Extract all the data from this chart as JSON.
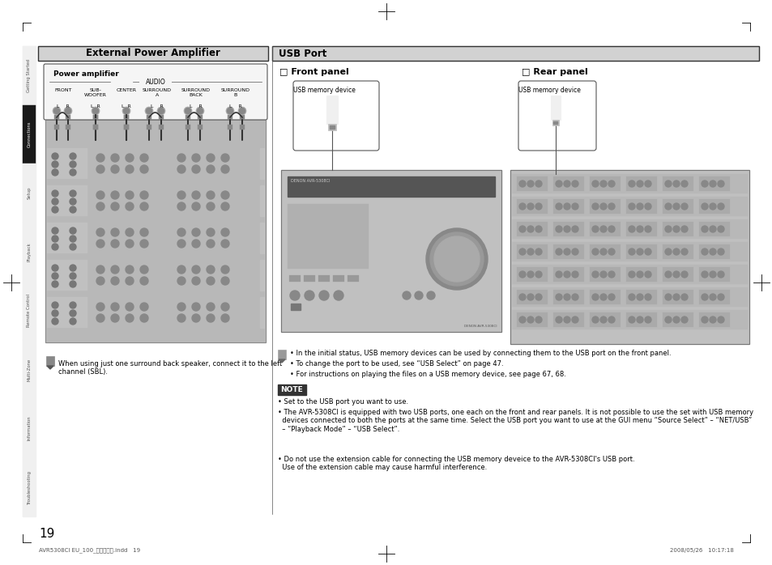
{
  "bg_color": "#ffffff",
  "title_left": "External Power Amplifier",
  "title_right": "USB Port",
  "section_front": "□ Front panel",
  "section_rear": "□ Rear panel",
  "usb_label": "USB memory device",
  "power_amp_label": "Power amplifier",
  "audio_label": "AUDIO",
  "channel_labels": [
    "FRONT",
    "SUB-\nWOOFER",
    "CENTER",
    "SURROUND\nA",
    "SURROUND\nBACK",
    "SURROUND\nB"
  ],
  "note_text": "NOTE",
  "bullet1": "• Set to the USB port you want to use.",
  "bullet2": "• The AVR-5308CI is equipped with two USB ports, one each on the front and rear panels. It is not possible to use the set with USB memory\n  devices connected to both the ports at the same time. Select the USB port you want to use at the GUI menu “Source Select” – “NET/USB”\n  – “Playback Mode” – “USB Select”.",
  "bullet3": "• Do not use the extension cable for connecting the USB memory deveice to the AVR-5308CI's USB port.\n  Use of the extension cable may cause harmful interference.",
  "note_left1": "When using just one surround back speaker, connect it to the left\nchannel (SBL).",
  "info_bullets": [
    "• In the initial status, USB memory devices can be used by connecting them to the USB port on the front panel.",
    "• To change the port to be used, see “USB Select” on page 47.",
    "• For instructions on playing the files on a USB memory device, see page 67, 68."
  ],
  "page_number": "19",
  "footer_left": "AVR5308CI EU_100_初検作成中.indd   19",
  "footer_right": "2008/05/26   10:17:18",
  "sidebar_labels": [
    "Getting\nStarted",
    "Connections",
    "Setup",
    "Playback",
    "Remote Control",
    "Multi-Zone",
    "Information",
    "Troubleshooting"
  ],
  "sidebar_active": "Connections",
  "header_gray": "#d2d2d2",
  "sidebar_active_color": "#1a1a1a",
  "sidebar_bg": "#f0f0f0"
}
